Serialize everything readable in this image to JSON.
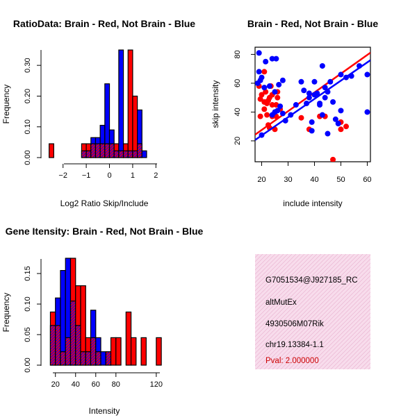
{
  "colors": {
    "red": "#ff0000",
    "blue": "#0000ff",
    "purple": "#a020f0",
    "info_bg": "#f8dcec",
    "pval": "#cc0000"
  },
  "chart_data": [
    {
      "id": "ratio",
      "type": "bar",
      "title": "RatioData: Brain - Red, Not Brain - Blue",
      "xlabel": "Log2 Ratio Skip/Include",
      "ylabel": "Frequency",
      "xlim": [
        -2.62,
        2.2
      ],
      "ylim": [
        0,
        0.35
      ],
      "xticks": [
        -2,
        -1,
        0,
        1,
        2
      ],
      "yticks": [
        0.0,
        0.1,
        0.2,
        0.3
      ],
      "ytick_labels": [
        "0.00",
        "0.10",
        "0.20",
        "0.30"
      ],
      "bin_start": -2.6,
      "bin_width": 0.2,
      "series": [
        {
          "name": "Brain",
          "color": "red",
          "values": [
            0.045,
            0,
            0,
            0,
            0,
            0,
            0,
            0.045,
            0.045,
            0.045,
            0.045,
            0.045,
            0.045,
            0.045,
            0.045,
            0.022,
            0.045,
            0.35,
            0.2,
            0.045,
            0
          ]
        },
        {
          "name": "Not Brain",
          "color": "blue",
          "values": [
            0,
            0,
            0,
            0,
            0,
            0,
            0,
            0.022,
            0.022,
            0.065,
            0.065,
            0.105,
            0.24,
            0.09,
            0.022,
            0.35,
            0.022,
            0.022,
            0.022,
            0.155,
            0.022
          ]
        }
      ]
    },
    {
      "id": "scatter",
      "type": "scatter",
      "title": "Brain - Red, Not Brain - Blue",
      "xlabel": "include intensity",
      "ylabel": "skip intensity",
      "xlim": [
        17.5,
        61.2
      ],
      "ylim": [
        5.5,
        85
      ],
      "xticks": [
        20,
        30,
        40,
        50,
        60
      ],
      "yticks": [
        20,
        40,
        60,
        80
      ],
      "series": [
        {
          "name": "Brain",
          "color": "red",
          "points": [
            [
              19,
              58
            ],
            [
              19.5,
              37
            ],
            [
              19.5,
              49
            ],
            [
              20,
              52
            ],
            [
              21,
              68
            ],
            [
              21,
              47
            ],
            [
              21,
              42
            ],
            [
              21.5,
              54
            ],
            [
              22,
              46
            ],
            [
              22,
              38
            ],
            [
              22.5,
              48
            ],
            [
              22.5,
              31
            ],
            [
              23,
              50
            ],
            [
              23,
              29
            ],
            [
              23.5,
              58
            ],
            [
              24,
              52
            ],
            [
              24,
              45
            ],
            [
              24,
              37
            ],
            [
              25,
              28
            ],
            [
              25.5,
              45
            ],
            [
              25.5,
              37
            ],
            [
              26,
              54
            ],
            [
              26,
              50
            ],
            [
              27,
              42
            ],
            [
              35,
              36
            ],
            [
              38,
              28
            ],
            [
              42,
              37
            ],
            [
              44,
              37
            ],
            [
              47,
              7
            ],
            [
              50,
              28
            ],
            [
              50,
              33
            ],
            [
              52,
              30
            ]
          ],
          "fit": [
            [
              17.5,
              24.3
            ],
            [
              61.2,
              81.2
            ]
          ]
        },
        {
          "name": "Not Brain",
          "color": "blue",
          "points": [
            [
              18.5,
              60
            ],
            [
              19,
              81
            ],
            [
              19,
              68
            ],
            [
              19.5,
              62
            ],
            [
              20,
              64
            ],
            [
              20,
              24
            ],
            [
              21,
              57
            ],
            [
              21.5,
              75
            ],
            [
              23,
              58
            ],
            [
              24,
              77
            ],
            [
              24,
              38
            ],
            [
              25,
              40
            ],
            [
              25,
              54
            ],
            [
              25.5,
              77
            ],
            [
              26,
              41
            ],
            [
              26.5,
              59
            ],
            [
              27,
              44
            ],
            [
              28,
              62
            ],
            [
              28,
              39
            ],
            [
              29,
              34
            ],
            [
              31,
              38
            ],
            [
              33,
              45
            ],
            [
              35,
              61
            ],
            [
              36,
              55
            ],
            [
              37,
              46
            ],
            [
              38,
              50
            ],
            [
              38,
              53
            ],
            [
              39,
              33
            ],
            [
              39,
              27
            ],
            [
              40,
              52
            ],
            [
              40,
              61
            ],
            [
              41,
              53
            ],
            [
              42,
              45
            ],
            [
              42,
              46
            ],
            [
              43,
              38
            ],
            [
              43,
              72
            ],
            [
              44,
              50
            ],
            [
              44,
              57
            ],
            [
              45,
              54
            ],
            [
              45,
              25
            ],
            [
              46,
              61
            ],
            [
              47,
              47
            ],
            [
              48,
              35
            ],
            [
              49,
              32
            ],
            [
              50,
              66
            ],
            [
              50,
              41
            ],
            [
              52,
              64
            ],
            [
              54,
              65
            ],
            [
              57,
              72
            ],
            [
              60,
              66
            ],
            [
              60,
              40
            ]
          ],
          "fit": [
            [
              17.5,
              20.6
            ],
            [
              61.2,
              76.0
            ]
          ]
        }
      ]
    },
    {
      "id": "intensity",
      "type": "bar",
      "title": "Gene Itensity: Brain - Red, Not Brain - Blue",
      "xlabel": "Intensity",
      "ylabel": "Frequency",
      "xlim": [
        13.3,
        126.3
      ],
      "ylim": [
        0,
        0.175
      ],
      "xticks": [
        20,
        40,
        60,
        80,
        120
      ],
      "yticks": [
        0.0,
        0.05,
        0.1,
        0.15
      ],
      "ytick_labels": [
        "0.00",
        "0.05",
        "0.10",
        "0.15"
      ],
      "bin_start": 15,
      "bin_width": 5,
      "series": [
        {
          "name": "Brain",
          "color": "red",
          "values": [
            0.087,
            0.065,
            0.022,
            0.045,
            0.175,
            0.13,
            0.13,
            0.045,
            0.045,
            0.022,
            0,
            0.022,
            0.045,
            0.045,
            0,
            0.087,
            0.045,
            0,
            0.045,
            0,
            0,
            0.045
          ]
        },
        {
          "name": "Not Brain",
          "color": "blue",
          "values": [
            0.065,
            0.11,
            0.155,
            0.175,
            0.105,
            0.065,
            0.022,
            0.022,
            0.09,
            0.045,
            0.022,
            0.022,
            0,
            0,
            0,
            0,
            0,
            0,
            0,
            0,
            0,
            0
          ]
        }
      ]
    }
  ],
  "info": {
    "probe": "G7051534@J927185_RC",
    "event": "altMutEx",
    "gene": "4930506M07Rik",
    "location": "chr19.13384-1.1",
    "pval": "Pval: 2.000000"
  }
}
